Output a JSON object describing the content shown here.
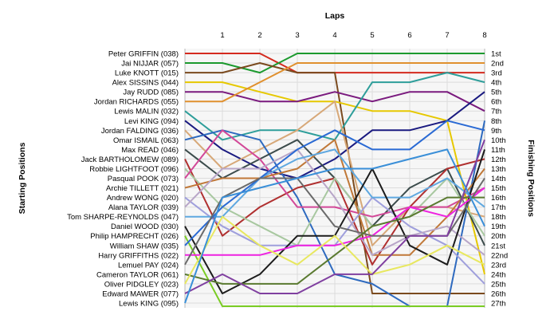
{
  "chart_data": {
    "type": "line",
    "chart_kind": "lap position chart",
    "title": "",
    "xlabel": "Laps",
    "ylabel_left": "Starting Positions",
    "ylabel_right": "Finishing Positions",
    "x_ticks": [
      "1",
      "2",
      "3",
      "4",
      "5",
      "6",
      "7",
      "8"
    ],
    "x_range": [
      0,
      8
    ],
    "y_range": [
      1,
      27
    ],
    "y_inverted": true,
    "grid": true,
    "legend": "none",
    "starting_positions": [
      "Peter GRIFFIN (038)",
      "Jai NIJJAR (057)",
      "Luke KNOTT (015)",
      "Alex SISSINS (044)",
      "Jay RUDD (085)",
      "Jordan RICHARDS (055)",
      "Lewis MALIN (032)",
      "Levi KING (094)",
      "Jordan FALDING (036)",
      "Omar ISMAIL (063)",
      "Max READ (046)",
      "Jack BARTHOLOMEW (089)",
      "Robbie LIGHTFOOT (096)",
      "Pasqual POOK (073)",
      "Archie TILLETT (021)",
      "Andrew WONG (020)",
      "Alana TAYLOR (039)",
      "Tom SHARPE-REYNOLDS (047)",
      "Daniel WOOD (030)",
      "Philip HAMPRECHT (026)",
      "William SHAW (035)",
      "Harry GRIFFITHS (022)",
      "Lemuel PAY (024)",
      "Cameron TAYLOR (061)",
      "Oliver PIDGLEY (023)",
      "Edward MAWER (077)",
      "Lewis KING (095)"
    ],
    "finishing_positions": [
      "1st",
      "2nd",
      "3rd",
      "4th",
      "5th",
      "6th",
      "7th",
      "8th",
      "9th",
      "10th",
      "11th",
      "12th",
      "13th",
      "14th",
      "15th",
      "16th",
      "17th",
      "18th",
      "19th",
      "20th",
      "21st",
      "22nd",
      "23rd",
      "24th",
      "25th",
      "26th",
      "27th"
    ],
    "series": [
      {
        "color": "#d42a1e",
        "values": [
          1,
          1,
          1,
          3,
          3,
          3,
          3,
          3,
          3
        ]
      },
      {
        "color": "#1c9a2e",
        "values": [
          2,
          2,
          3,
          1,
          1,
          1,
          1,
          1,
          1
        ]
      },
      {
        "color": "#7a4a1e",
        "values": [
          3,
          3,
          2,
          3,
          3,
          26,
          26,
          26,
          26
        ]
      },
      {
        "color": "#e6c800",
        "values": [
          4,
          4,
          5,
          6,
          6,
          7,
          7,
          8,
          24
        ]
      },
      {
        "color": "#7a1a7e",
        "values": [
          5,
          5,
          6,
          6,
          5,
          6,
          5,
          5,
          7
        ]
      },
      {
        "color": "#e0902e",
        "values": [
          6,
          6,
          4,
          2,
          2,
          2,
          2,
          2,
          2
        ]
      },
      {
        "color": "#2e9e9a",
        "values": [
          7,
          10,
          9,
          9,
          10,
          4,
          4,
          3,
          4
        ]
      },
      {
        "color": "#1a1a80",
        "values": [
          8,
          11,
          13,
          14,
          12,
          9,
          9,
          8,
          5
        ]
      },
      {
        "color": "#d7a878",
        "values": [
          9,
          13,
          11,
          9,
          6,
          21,
          17,
          17,
          18
        ]
      },
      {
        "color": "#2e6abf",
        "values": [
          10,
          9,
          10,
          16,
          24,
          25,
          29,
          29,
          8
        ]
      },
      {
        "color": "#3c4c4c",
        "values": [
          11,
          14,
          12,
          10,
          14,
          19,
          15,
          13,
          21
        ]
      },
      {
        "color": "#b03030",
        "values": [
          12,
          20,
          17,
          15,
          14,
          23,
          17,
          13,
          12
        ]
      },
      {
        "color": "#a8c8a0",
        "values": [
          13,
          17,
          19,
          21,
          14,
          19,
          18,
          14,
          20
        ]
      },
      {
        "color": "#d24898",
        "values": [
          14,
          9,
          12,
          17,
          17,
          18,
          17,
          17,
          15
        ]
      },
      {
        "color": "#c07838",
        "values": [
          15,
          14,
          14,
          13,
          10,
          22,
          22,
          18,
          13
        ]
      },
      {
        "color": "#9f9fdc",
        "values": [
          16,
          19,
          21,
          21,
          21,
          16,
          19,
          21,
          25
        ]
      },
      {
        "color": "#b8a6c8",
        "values": [
          17,
          13,
          13,
          11,
          16,
          22,
          20,
          19,
          22
        ]
      },
      {
        "color": "#5fa8e0",
        "values": [
          18,
          18,
          14,
          12,
          11,
          16,
          16,
          14,
          17
        ]
      },
      {
        "color": "#1c1c1c",
        "values": [
          19,
          26,
          24,
          20,
          20,
          13,
          21,
          23,
          11
        ]
      },
      {
        "color": "#7acc24",
        "values": [
          20,
          28,
          28,
          28,
          28,
          28,
          28,
          28,
          28
        ]
      },
      {
        "color": "#2a6ad4",
        "values": [
          21,
          17,
          14,
          11,
          9,
          11,
          11,
          8,
          9
        ]
      },
      {
        "color": "#ee22e0",
        "values": [
          22,
          22,
          22,
          21,
          21,
          20,
          17,
          18,
          15
        ]
      },
      {
        "color": "#6a6a6a",
        "values": [
          23,
          16,
          14,
          14,
          19,
          20,
          20,
          20,
          14
        ]
      },
      {
        "color": "#5a7a30",
        "values": [
          24,
          25,
          25,
          25,
          22,
          19,
          18,
          16,
          16
        ]
      },
      {
        "color": "#e8e860",
        "values": [
          25,
          18,
          21,
          23,
          20,
          24,
          23,
          21,
          23
        ]
      },
      {
        "color": "#8040a0",
        "values": [
          26,
          24,
          26,
          26,
          24,
          24,
          20,
          20,
          10
        ]
      },
      {
        "color": "#3a8fd8",
        "values": [
          27,
          16,
          15,
          14,
          13,
          13,
          12,
          11,
          19
        ]
      }
    ]
  }
}
